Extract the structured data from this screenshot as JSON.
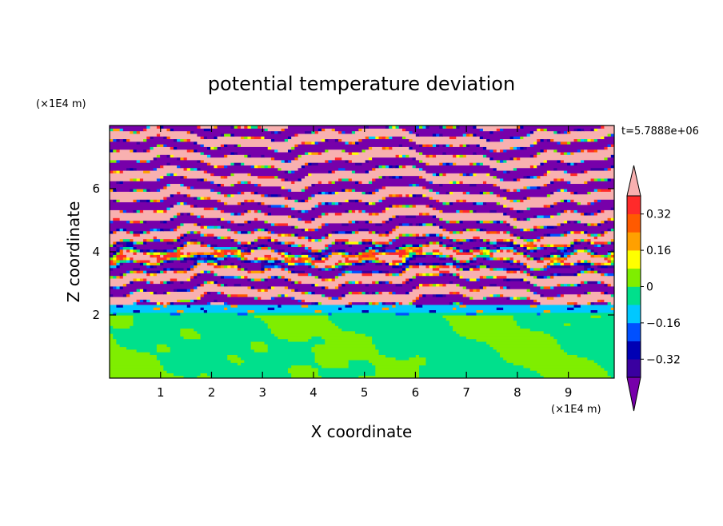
{
  "chart_data": {
    "type": "heatmap",
    "title": "potential temperature deviation",
    "time_label": "t=5.7888e+06",
    "xlabel": "X coordinate",
    "ylabel": "Z coordinate",
    "x_unit": "(×1E4 m)",
    "y_unit": "(×1E4 m)",
    "xlim": [
      0,
      9.9
    ],
    "ylim": [
      0,
      8
    ],
    "x_ticks": [
      "1",
      "2",
      "3",
      "4",
      "5",
      "6",
      "7",
      "8",
      "9"
    ],
    "y_ticks": [
      "2",
      "4",
      "6"
    ],
    "x_tick_values": [
      1,
      2,
      3,
      4,
      5,
      6,
      7,
      8,
      9
    ],
    "y_tick_values": [
      2,
      4,
      6
    ],
    "colorbar": {
      "levels": [
        -0.4,
        -0.32,
        -0.24,
        -0.16,
        -0.08,
        0,
        0.08,
        0.16,
        0.24,
        0.32,
        0.4
      ],
      "tick_labels": [
        "0.32",
        "0.16",
        "0",
        "−0.16",
        "−0.32"
      ],
      "tick_values": [
        0.32,
        0.16,
        0,
        -0.16,
        -0.32
      ],
      "colors": [
        "#7700aa",
        "#3a00a0",
        "#0000b4",
        "#0050ff",
        "#00c8ff",
        "#00e08c",
        "#7fee00",
        "#ffff00",
        "#ffa000",
        "#ff5a00",
        "#ff2a2a",
        "#f8b0b0"
      ],
      "extend": "both"
    },
    "grid": false,
    "legend_position": "right"
  }
}
